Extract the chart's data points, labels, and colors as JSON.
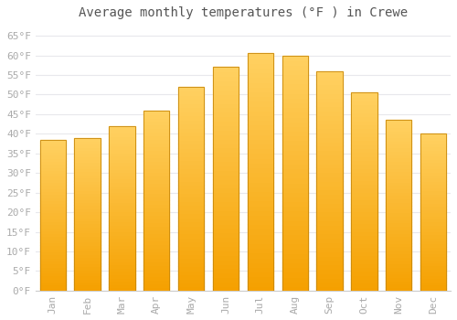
{
  "title": "Average monthly temperatures (°F ) in Crewe",
  "months": [
    "Jan",
    "Feb",
    "Mar",
    "Apr",
    "May",
    "Jun",
    "Jul",
    "Aug",
    "Sep",
    "Oct",
    "Nov",
    "Dec"
  ],
  "values": [
    38.5,
    39,
    42,
    46,
    52,
    57,
    60.5,
    60,
    56,
    50.5,
    43.5,
    40
  ],
  "bar_color_top": "#FFC020",
  "bar_color_bottom": "#F5A000",
  "bar_edge_color": "#C8880A",
  "background_color": "#FFFFFF",
  "plot_bg_color": "#FFFFFF",
  "grid_color": "#E8E8EC",
  "ytick_labels": [
    "0°F",
    "5°F",
    "10°F",
    "15°F",
    "20°F",
    "25°F",
    "30°F",
    "35°F",
    "40°F",
    "45°F",
    "50°F",
    "55°F",
    "60°F",
    "65°F"
  ],
  "ytick_values": [
    0,
    5,
    10,
    15,
    20,
    25,
    30,
    35,
    40,
    45,
    50,
    55,
    60,
    65
  ],
  "ylim": [
    0,
    68
  ],
  "title_fontsize": 10,
  "tick_fontsize": 8,
  "tick_color": "#AAAAAA",
  "title_color": "#555555",
  "font_family": "monospace"
}
